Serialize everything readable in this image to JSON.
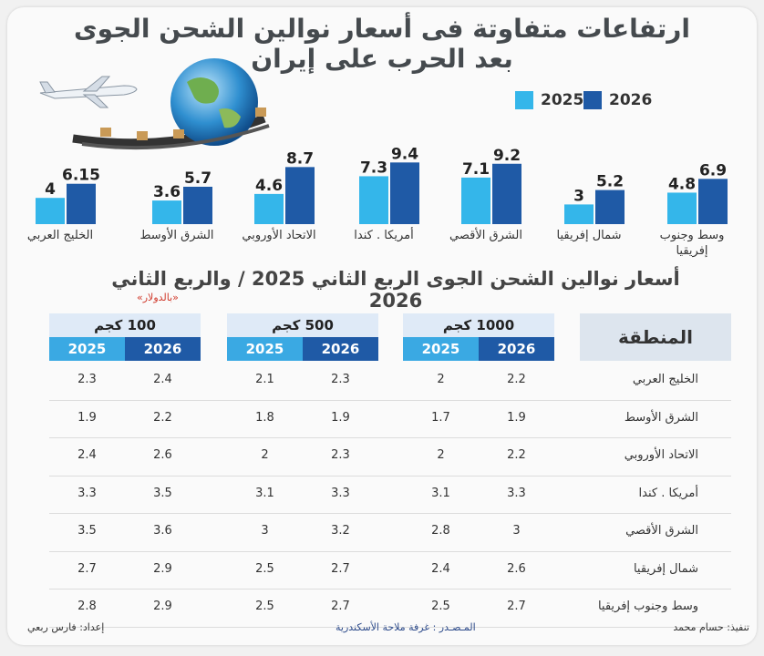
{
  "title": "ارتفاعات متفاوتة فى أسعار نوالين الشحن الجوى بعد الحرب على إيران",
  "legend": {
    "y2026": "2026",
    "y2025": "2025"
  },
  "colors": {
    "y2026": "#1f5aa6",
    "y2025": "#34b6ea"
  },
  "chart_data": [
    {
      "type": "bar",
      "categories": [
        "الخليج العربي",
        "الشرق الأوسط",
        "الاتحاد الأوروبي",
        "أمريكا . كندا",
        "الشرق الأقصي",
        "شمال إفريقيا",
        "وسط وجنوب إفريقيا"
      ],
      "series": [
        {
          "name": "2025",
          "values": [
            4,
            3.6,
            4.6,
            7.3,
            7.1,
            3,
            4.8
          ]
        },
        {
          "name": "2026",
          "values": [
            6.15,
            5.7,
            8.7,
            9.4,
            9.2,
            5.2,
            6.9
          ]
        }
      ],
      "value_labels_2025": [
        "4",
        "3.6",
        "4.6",
        "7.3",
        "7.1",
        "3",
        "4.8"
      ],
      "value_labels_2026": [
        "6.15",
        "5.7",
        "8.7",
        "9.4",
        "9.2",
        "5.2",
        "6.9"
      ],
      "ylim": [
        0,
        10
      ]
    },
    {
      "type": "table",
      "title": "أسعار نوالين الشحن الجوى الربع الثاني 2025 / والربع الثاني 2026",
      "unit": "«بالدولار»",
      "region_header": "المنطقة",
      "groups": [
        {
          "label": "1000 كجم",
          "years": [
            "2026",
            "2025"
          ]
        },
        {
          "label": "500 كجم",
          "years": [
            "2026",
            "2025"
          ]
        },
        {
          "label": "100 كجم",
          "years": [
            "2026",
            "2025"
          ]
        }
      ],
      "rows": [
        {
          "region": "الخليج العربي",
          "values": [
            "2.2",
            "2",
            "2.3",
            "2.1",
            "2.4",
            "2.3"
          ]
        },
        {
          "region": "الشرق الأوسط",
          "values": [
            "1.9",
            "1.7",
            "1.9",
            "1.8",
            "2.2",
            "1.9"
          ]
        },
        {
          "region": "الاتحاد الأوروبي",
          "values": [
            "2.2",
            "2",
            "2.3",
            "2",
            "2.6",
            "2.4"
          ]
        },
        {
          "region": "أمريكا . كندا",
          "values": [
            "3.3",
            "3.1",
            "3.3",
            "3.1",
            "3.5",
            "3.3"
          ]
        },
        {
          "region": "الشرق الأقصي",
          "values": [
            "3",
            "2.8",
            "3.2",
            "3",
            "3.6",
            "3.5"
          ]
        },
        {
          "region": "شمال إفريقيا",
          "values": [
            "2.6",
            "2.4",
            "2.7",
            "2.5",
            "2.9",
            "2.7"
          ]
        },
        {
          "region": "وسط وجنوب إفريقيا",
          "values": [
            "2.7",
            "2.5",
            "2.7",
            "2.5",
            "2.9",
            "2.8"
          ]
        }
      ]
    }
  ],
  "footer": {
    "execution": "تنفيذ: حسام محمد",
    "source": "المـصـدر : غرفة ملاحة الأسكندرية",
    "prepared": "إعداد: فارس ربعي"
  }
}
